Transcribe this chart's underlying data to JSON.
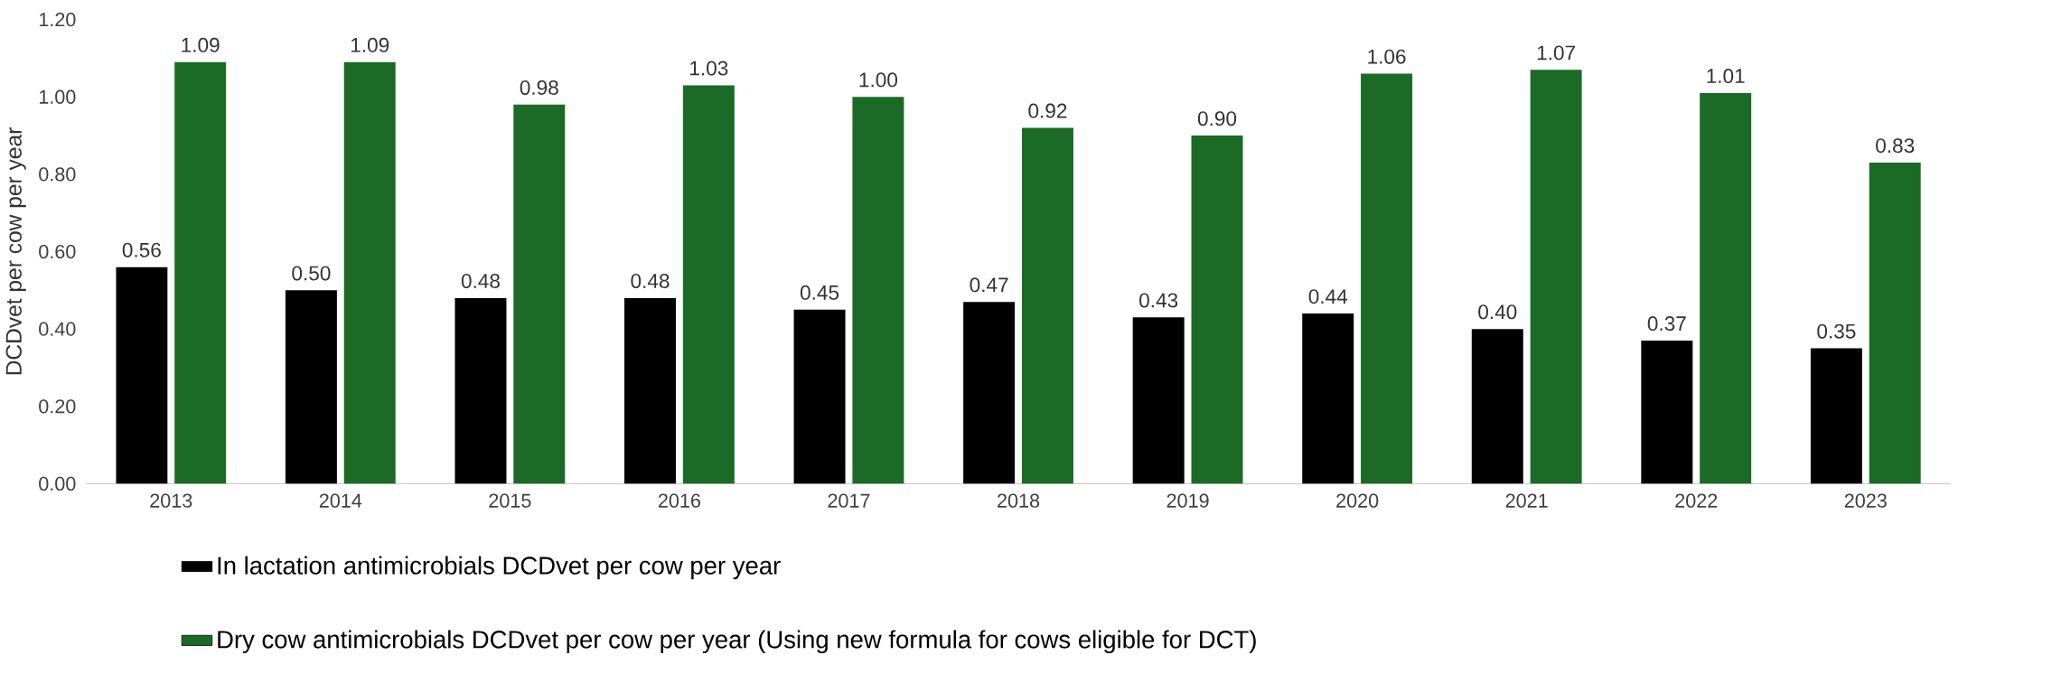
{
  "chart_data": {
    "type": "bar",
    "ylabel": "DCDvet per cow per year",
    "categories": [
      "2013",
      "2014",
      "2015",
      "2016",
      "2017",
      "2018",
      "2019",
      "2020",
      "2021",
      "2022",
      "2023"
    ],
    "series": [
      {
        "name": "In lactation antimicrobials DCDvet per cow per year",
        "color": "#000000",
        "values": [
          0.56,
          0.5,
          0.48,
          0.48,
          0.45,
          0.47,
          0.43,
          0.44,
          0.4,
          0.37,
          0.35
        ],
        "value_labels": [
          "0.56",
          "0.50",
          "0.48",
          "0.48",
          "0.45",
          "0.47",
          "0.43",
          "0.44",
          "0.40",
          "0.37",
          "0.35"
        ]
      },
      {
        "name": "Dry cow antimicrobials DCDvet per cow per year (Using new formula for cows eligible for DCT)",
        "color": "#1b6b27",
        "values": [
          1.09,
          1.09,
          0.98,
          1.03,
          1.0,
          0.92,
          0.9,
          1.06,
          1.07,
          1.01,
          0.83
        ],
        "value_labels": [
          "1.09",
          "1.09",
          "0.98",
          "1.03",
          "1.00",
          "0.92",
          "0.90",
          "1.06",
          "1.07",
          "1.01",
          "0.83"
        ]
      }
    ],
    "ylim": [
      0,
      1.2
    ],
    "yticks": [
      {
        "value": 0,
        "label": "0.00"
      },
      {
        "value": 0.2,
        "label": "0.20"
      },
      {
        "value": 0.4,
        "label": "0.40"
      },
      {
        "value": 0.6,
        "label": "0.60"
      },
      {
        "value": 0.8,
        "label": "0.80"
      },
      {
        "value": 1.0,
        "label": "1.00"
      },
      {
        "value": 1.2,
        "label": "1.20"
      }
    ],
    "legend": "bottom left"
  }
}
